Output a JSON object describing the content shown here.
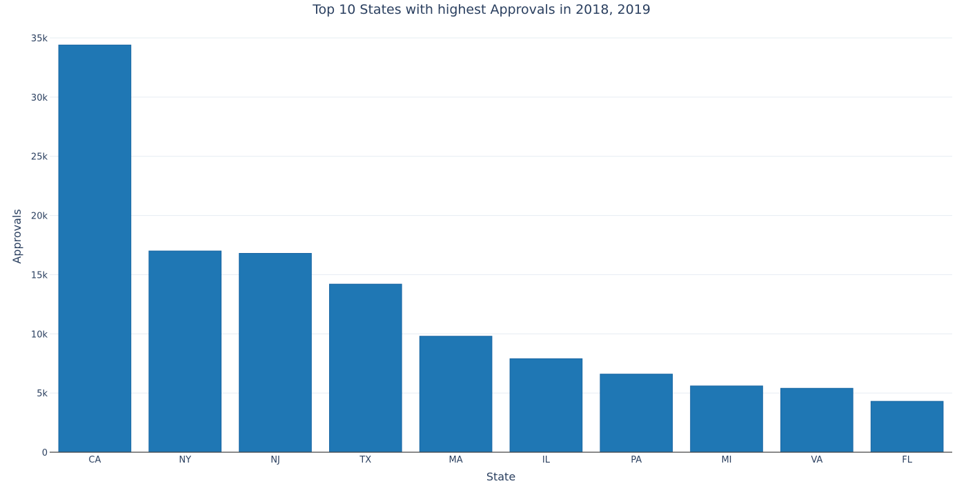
{
  "chart_data": {
    "type": "bar",
    "title": "Top 10 States with highest Approvals in 2018, 2019",
    "xlabel": "State",
    "ylabel": "Approvals",
    "categories": [
      "CA",
      "NY",
      "NJ",
      "TX",
      "MA",
      "IL",
      "PA",
      "MI",
      "VA",
      "FL"
    ],
    "values": [
      34400,
      17000,
      16800,
      14200,
      9800,
      7900,
      6600,
      5600,
      5400,
      4300
    ],
    "ylim": [
      0,
      35000
    ],
    "yticks": [
      0,
      5000,
      10000,
      15000,
      20000,
      25000,
      30000,
      35000
    ],
    "ytick_labels": [
      "0",
      "5k",
      "10k",
      "15k",
      "20k",
      "25k",
      "30k",
      "35k"
    ],
    "bar_color": "#1f77b4",
    "grid": true,
    "legend": "none"
  }
}
